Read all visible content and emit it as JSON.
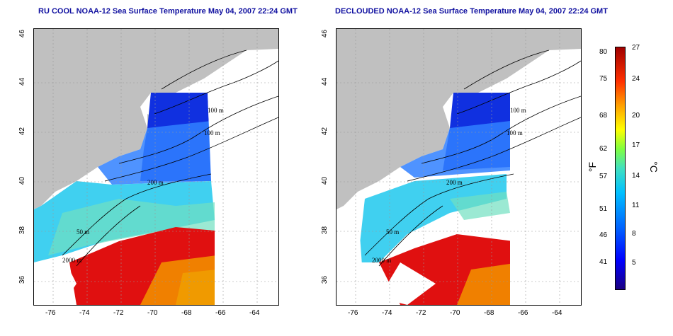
{
  "panels": [
    {
      "title": "RU COOL NOAA-12 Sea Surface Temperature May 04, 2007 22:24 GMT"
    },
    {
      "title": "DECLOUDED NOAA-12 Sea Surface Temperature May 04, 2007 22:24 GMT"
    }
  ],
  "axes": {
    "x_ticks": [
      "-76",
      "-74",
      "-72",
      "-70",
      "-68",
      "-66",
      "-64"
    ],
    "y_ticks": [
      "36",
      "38",
      "40",
      "42",
      "44",
      "46"
    ]
  },
  "contour_labels": {
    "left": [
      "100 m",
      "100 m",
      "200 m",
      "50 m",
      "2000 m"
    ],
    "right": [
      "100 m",
      "100 m",
      "200 m",
      "50 m",
      "2000 m"
    ]
  },
  "colorbar": {
    "f_ticks": [
      "80",
      "75",
      "68",
      "62",
      "57",
      "51",
      "46",
      "41"
    ],
    "c_ticks": [
      "27",
      "24",
      "20",
      "17",
      "14",
      "11",
      "8",
      "5"
    ],
    "f_unit": "°F",
    "c_unit": "°C"
  },
  "colors": {
    "land": "#c0c0c0",
    "title": "#1010a0"
  }
}
